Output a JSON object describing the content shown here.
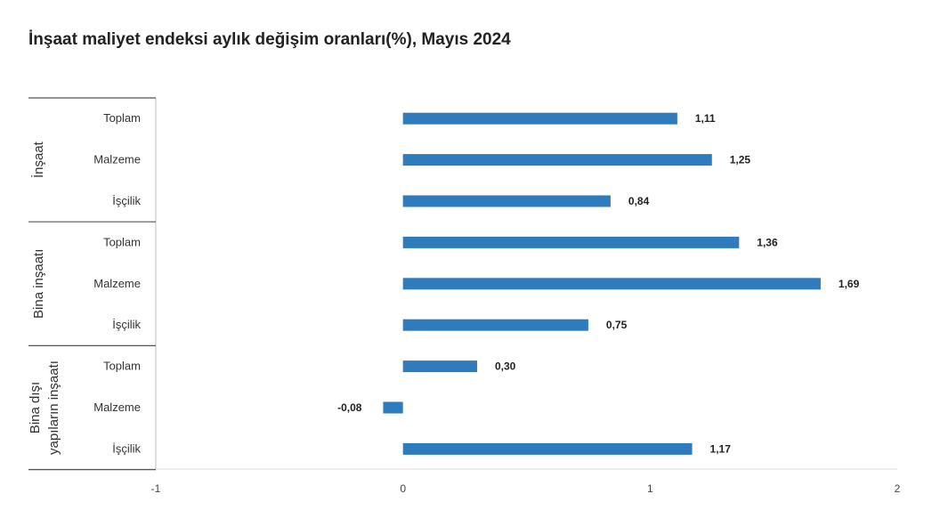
{
  "chart_data": {
    "type": "bar",
    "orientation": "horizontal",
    "title": "İnşaat maliyet endeksi aylık değişim oranları(%), Mayıs 2024",
    "groups": [
      {
        "label_lines": [
          "İnşaat"
        ],
        "categories": [
          "Toplam",
          "Malzeme",
          "İşçilik"
        ]
      },
      {
        "label_lines": [
          "Bina inşaatı"
        ],
        "categories": [
          "Toplam",
          "Malzeme",
          "İşçilik"
        ]
      },
      {
        "label_lines": [
          "Bina dışı",
          "yapıların inşaatı"
        ],
        "categories": [
          "Toplam",
          "Malzeme",
          "İşçilik"
        ]
      }
    ],
    "values": [
      1.11,
      1.25,
      0.84,
      1.36,
      1.69,
      0.75,
      0.3,
      -0.08,
      1.17
    ],
    "value_labels": [
      "1,11",
      "1,25",
      "0,84",
      "1,36",
      "1,69",
      "0,75",
      "0,30",
      "-0,08",
      "1,17"
    ],
    "xlim": [
      -1,
      2
    ],
    "xticks": [
      "-1",
      "0",
      "1",
      "2"
    ],
    "bar_color": "#2e7bbd",
    "grid": false,
    "legend": "none"
  }
}
